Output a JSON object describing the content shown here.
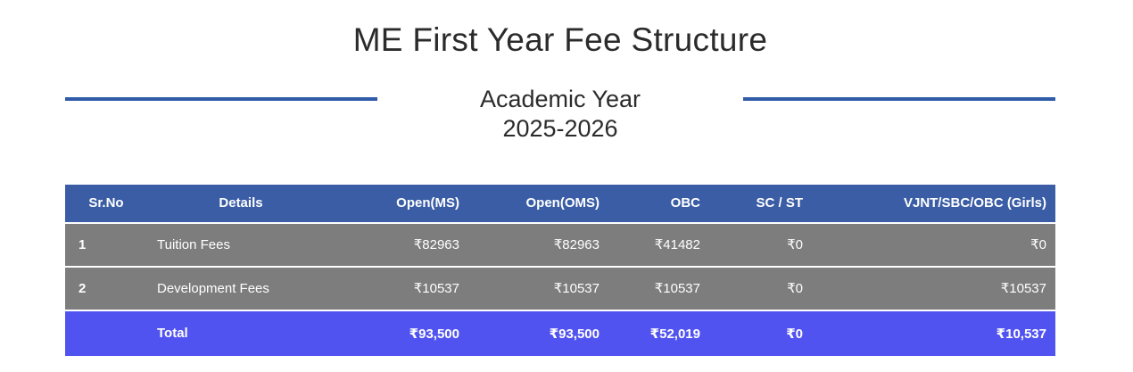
{
  "page": {
    "title": "ME First Year Fee Structure",
    "subtitle_line1": "Academic Year",
    "subtitle_line2": "2025-2026"
  },
  "colors": {
    "accent_line": "#2f5ba8",
    "header_bg": "#3a5da6",
    "row_bg": "#7d7d7d",
    "total_bg": "#5153f0",
    "table_text": "#ffffff",
    "title_text": "#2b2b2b"
  },
  "table": {
    "columns": [
      {
        "label": "Sr.No"
      },
      {
        "label": "Details"
      },
      {
        "label": "Open(MS)"
      },
      {
        "label": "Open(OMS)"
      },
      {
        "label": "OBC"
      },
      {
        "label": "SC / ST"
      },
      {
        "label": "VJNT/SBC/OBC (Girls)"
      }
    ],
    "rows": [
      {
        "sr_no": "1",
        "details": "Tuition Fees",
        "open_ms": "₹82963",
        "open_oms": "₹82963",
        "obc": "₹41482",
        "sc_st": "₹0",
        "vjnt_sbc_obc_girls": "₹0"
      },
      {
        "sr_no": "2",
        "details": "Development Fees",
        "open_ms": "₹10537",
        "open_oms": "₹10537",
        "obc": "₹10537",
        "sc_st": "₹0",
        "vjnt_sbc_obc_girls": "₹10537"
      }
    ],
    "total_row": {
      "sr_no": "",
      "label": "Total",
      "open_ms": "₹93,500",
      "open_oms": "₹93,500",
      "obc": "₹52,019",
      "sc_st": "₹0",
      "vjnt_sbc_obc_girls": "₹10,537"
    }
  }
}
